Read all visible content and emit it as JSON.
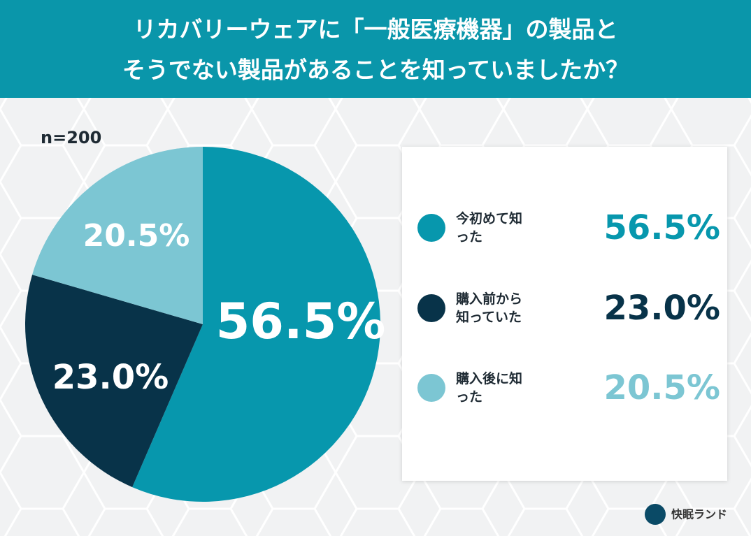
{
  "chart_data": {
    "type": "pie",
    "title": [
      "リカバリーウェアに「一般医療機器」の製品と",
      "そうでない製品があることを知っていましたか？"
    ],
    "annotation": "n=200",
    "categories": [
      "今初めて知った",
      "購入前から知っていた",
      "購入後に知った"
    ],
    "values": [
      56.5,
      23.0,
      20.5
    ],
    "value_labels": [
      "56.5%",
      "23.0%",
      "20.5%"
    ],
    "colors": [
      "#0797ad",
      "#083349",
      "#7cc6d3"
    ]
  },
  "brand": "快眠ランド"
}
